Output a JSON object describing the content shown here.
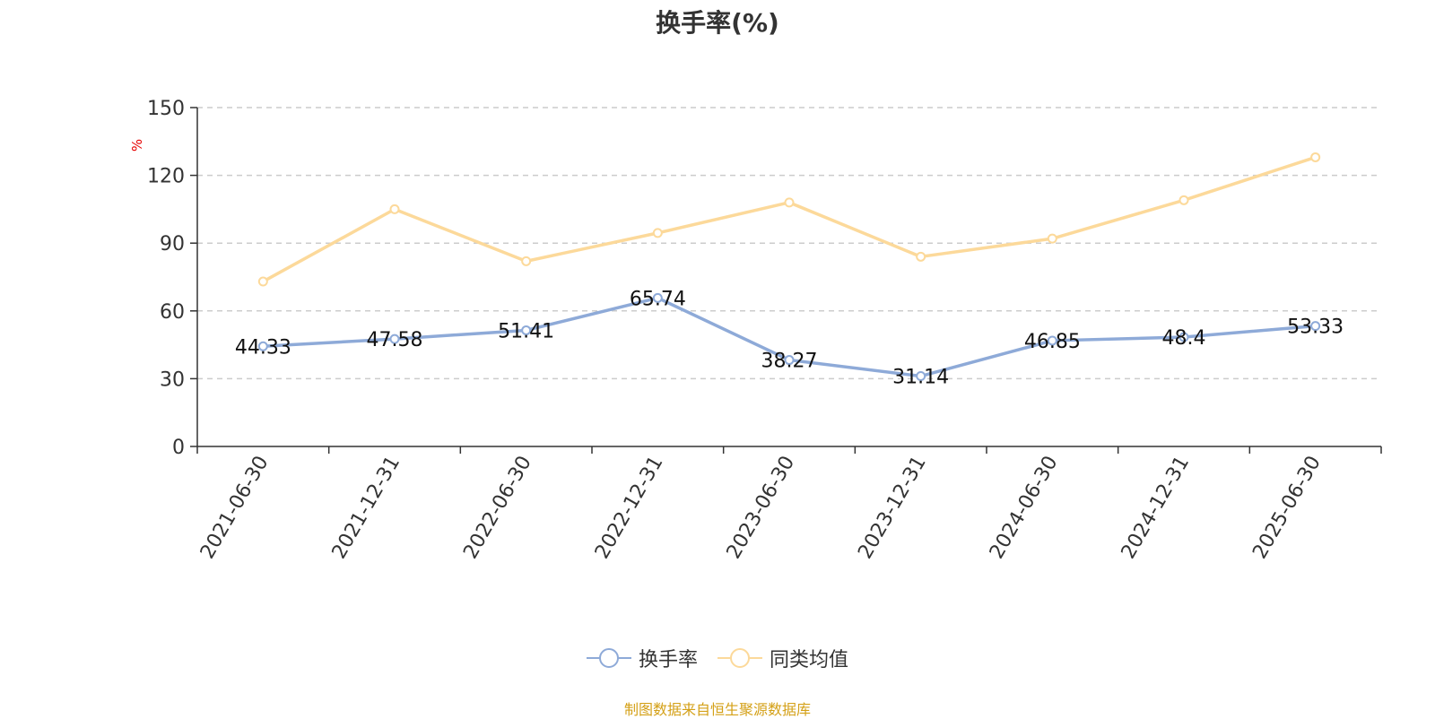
{
  "chart_data": {
    "type": "line",
    "title": "换手率(%)",
    "ylabel": "%",
    "ylim": [
      0,
      150
    ],
    "yticks": [
      0,
      30,
      60,
      90,
      120,
      150
    ],
    "grid": "horizontal dashed",
    "legend_position": "bottom-center",
    "categories": [
      "2021-06-30",
      "2021-12-31",
      "2022-06-30",
      "2022-12-31",
      "2023-06-30",
      "2023-12-31",
      "2024-06-30",
      "2024-12-31",
      "2025-06-30"
    ],
    "series": [
      {
        "name": "换手率",
        "color": "#8eaad8",
        "values": [
          44.33,
          47.58,
          51.41,
          65.74,
          38.27,
          31.14,
          46.85,
          48.4,
          53.33
        ],
        "labels": [
          "44.33",
          "47.58",
          "51.41",
          "65.74",
          "38.27",
          "31.14",
          "46.85",
          "48.4",
          "53.33"
        ]
      },
      {
        "name": "同类均值",
        "color": "#fcd99a",
        "values": [
          73,
          105,
          82,
          94.5,
          108,
          84,
          92,
          109,
          128
        ]
      }
    ]
  },
  "source_note": "制图数据来自恒生聚源数据库"
}
